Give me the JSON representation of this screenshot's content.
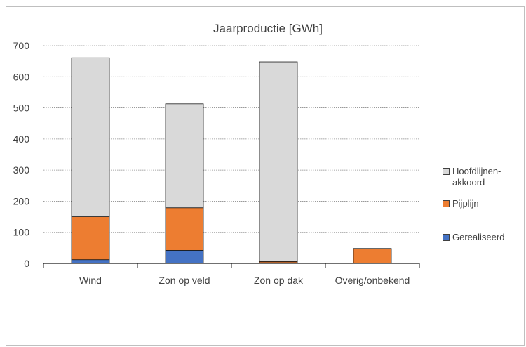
{
  "chart_data": {
    "type": "bar",
    "stacked": true,
    "title": "Jaarproductie [GWh]",
    "categories": [
      "Wind",
      "Zon op veld",
      "Zon op dak",
      "Overig/onbekend"
    ],
    "series": [
      {
        "name": "Gerealiseerd",
        "color": "#4472C4",
        "values": [
          12,
          42,
          2,
          0
        ]
      },
      {
        "name": "Pijplijn",
        "color": "#ED7D31",
        "values": [
          138,
          137,
          4,
          48
        ]
      },
      {
        "name": "Hoofdlijnen-\nakkoord",
        "color": "#D9D9D9",
        "values": [
          511,
          334,
          642,
          0
        ]
      }
    ],
    "ylim": [
      0,
      700
    ],
    "yticks": [
      0,
      100,
      200,
      300,
      400,
      500,
      600,
      700
    ],
    "grid": true,
    "legend_position": "right"
  }
}
